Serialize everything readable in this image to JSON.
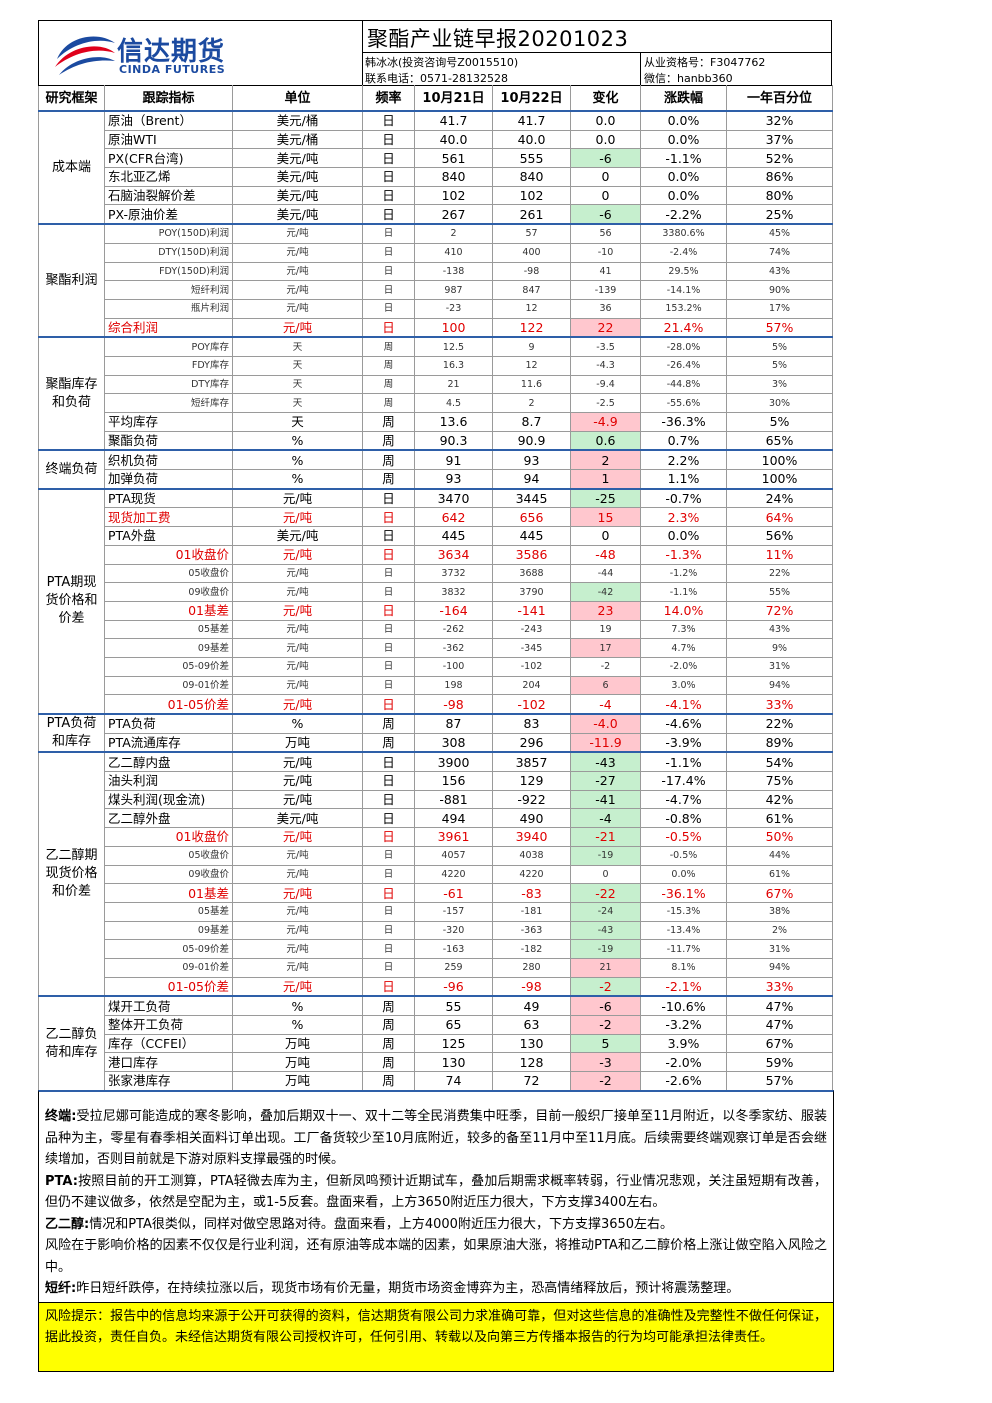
{
  "header": {
    "logo_cn": "信达期货",
    "logo_en": "CINDA FUTURES",
    "title": "聚酯产业链早报20201023",
    "author": "韩冰冰(投资咨询号Z0015510)",
    "phone": "联系电话：0571-28132528",
    "license": "从业资格号：F3047762",
    "wechat": "微信：hanbb360"
  },
  "table": {
    "columns": [
      "研究框架",
      "跟踪指标",
      "单位",
      "频率",
      "10月21日",
      "10月22日",
      "变化",
      "涨跌幅",
      "一年百分位"
    ],
    "groups": [
      {
        "label": [
          "成本端"
        ],
        "rows": [
          [
            "原油（Brent）",
            "美元/桶",
            "日",
            "41.7",
            "41.7",
            "0.0",
            "0.0%",
            "32%"
          ],
          [
            "原油WTI",
            "美元/桶",
            "日",
            "40.0",
            "40.0",
            "0.0",
            "0.0%",
            "37%"
          ],
          [
            "PX(CFR台湾)",
            "美元/吨",
            "日",
            "561",
            "555",
            "-6",
            "-1.1%",
            "52%"
          ],
          [
            "东北亚乙烯",
            "美元/吨",
            "日",
            "840",
            "840",
            "0",
            "0.0%",
            "86%"
          ],
          [
            "石脑油裂解价差",
            "美元/吨",
            "日",
            "102",
            "102",
            "0",
            "0.0%",
            "80%"
          ],
          [
            "PX-原油价差",
            "美元/吨",
            "日",
            "267",
            "261",
            "-6",
            "-2.2%",
            "25%"
          ]
        ]
      },
      {
        "label": [
          "聚酯利润"
        ],
        "rows": [
          [
            "POY(150D)利润",
            "元/吨",
            "日",
            "2",
            "57",
            "56",
            "3380.6%",
            "45%"
          ],
          [
            "DTY(150D)利润",
            "元/吨",
            "日",
            "410",
            "400",
            "-10",
            "-2.4%",
            "74%"
          ],
          [
            "FDY(150D)利润",
            "元/吨",
            "日",
            "-138",
            "-98",
            "41",
            "29.5%",
            "43%"
          ],
          [
            "短纤利润",
            "元/吨",
            "日",
            "987",
            "847",
            "-139",
            "-14.1%",
            "90%"
          ],
          [
            "瓶片利润",
            "元/吨",
            "日",
            "-23",
            "12",
            "36",
            "153.2%",
            "17%"
          ],
          [
            "综合利润",
            "元/吨",
            "日",
            "100",
            "122",
            "22",
            "21.4%",
            "57%"
          ]
        ]
      },
      {
        "label": [
          "聚酯库存",
          "和负荷"
        ],
        "rows": [
          [
            "POY库存",
            "天",
            "周",
            "12.5",
            "9",
            "-3.5",
            "-28.0%",
            "5%"
          ],
          [
            "FDY库存",
            "天",
            "周",
            "16.3",
            "12",
            "-4.3",
            "-26.4%",
            "5%"
          ],
          [
            "DTY库存",
            "天",
            "周",
            "21",
            "11.6",
            "-9.4",
            "-44.8%",
            "3%"
          ],
          [
            "短纤库存",
            "天",
            "周",
            "4.5",
            "2",
            "-2.5",
            "-55.6%",
            "30%"
          ],
          [
            "平均库存",
            "天",
            "周",
            "13.6",
            "8.7",
            "-4.9",
            "-36.3%",
            "5%"
          ],
          [
            "聚酯负荷",
            "%",
            "周",
            "90.3",
            "90.9",
            "0.6",
            "0.7%",
            "65%"
          ]
        ]
      },
      {
        "label": [
          "终端负荷"
        ],
        "rows": [
          [
            "织机负荷",
            "%",
            "周",
            "91",
            "93",
            "2",
            "2.2%",
            "100%"
          ],
          [
            "加弹负荷",
            "%",
            "周",
            "93",
            "94",
            "1",
            "1.1%",
            "100%"
          ]
        ]
      },
      {
        "label": [
          "PTA期现",
          "货价格和",
          "价差"
        ],
        "rows": [
          [
            "PTA现货",
            "元/吨",
            "日",
            "3470",
            "3445",
            "-25",
            "-0.7%",
            "24%"
          ],
          [
            "现货加工费",
            "元/吨",
            "日",
            "642",
            "656",
            "15",
            "2.3%",
            "64%"
          ],
          [
            "PTA外盘",
            "美元/吨",
            "日",
            "445",
            "445",
            "0",
            "0.0%",
            "56%"
          ],
          [
            "01收盘价",
            "元/吨",
            "日",
            "3634",
            "3586",
            "-48",
            "-1.3%",
            "11%"
          ],
          [
            "05收盘价",
            "元/吨",
            "日",
            "3732",
            "3688",
            "-44",
            "-1.2%",
            "22%"
          ],
          [
            "09收盘价",
            "元/吨",
            "日",
            "3832",
            "3790",
            "-42",
            "-1.1%",
            "55%"
          ],
          [
            "01基差",
            "元/吨",
            "日",
            "-164",
            "-141",
            "23",
            "14.0%",
            "72%"
          ],
          [
            "05基差",
            "元/吨",
            "日",
            "-262",
            "-243",
            "19",
            "7.3%",
            "43%"
          ],
          [
            "09基差",
            "元/吨",
            "日",
            "-362",
            "-345",
            "17",
            "4.7%",
            "9%"
          ],
          [
            "05-09价差",
            "元/吨",
            "日",
            "-100",
            "-102",
            "-2",
            "-2.0%",
            "31%"
          ],
          [
            "09-01价差",
            "元/吨",
            "日",
            "198",
            "204",
            "6",
            "3.0%",
            "94%"
          ],
          [
            "01-05价差",
            "元/吨",
            "日",
            "-98",
            "-102",
            "-4",
            "-4.1%",
            "33%"
          ]
        ]
      },
      {
        "label": [
          "PTA负荷",
          "和库存"
        ],
        "rows": [
          [
            "PTA负荷",
            "%",
            "周",
            "87",
            "83",
            "-4.0",
            "-4.6%",
            "22%"
          ],
          [
            "PTA流通库存",
            "万吨",
            "周",
            "308",
            "296",
            "-11.9",
            "-3.9%",
            "89%"
          ]
        ]
      },
      {
        "label": [
          "乙二醇期",
          "现货价格",
          "和价差"
        ],
        "rows": [
          [
            "乙二醇内盘",
            "元/吨",
            "日",
            "3900",
            "3857",
            "-43",
            "-1.1%",
            "54%"
          ],
          [
            "油头利润",
            "元/吨",
            "日",
            "156",
            "129",
            "-27",
            "-17.4%",
            "75%"
          ],
          [
            "煤头利润(现金流)",
            "元/吨",
            "日",
            "-881",
            "-922",
            "-41",
            "-4.7%",
            "42%"
          ],
          [
            "乙二醇外盘",
            "美元/吨",
            "日",
            "494",
            "490",
            "-4",
            "-0.8%",
            "61%"
          ],
          [
            "01收盘价",
            "元/吨",
            "日",
            "3961",
            "3940",
            "-21",
            "-0.5%",
            "50%"
          ],
          [
            "05收盘价",
            "元/吨",
            "日",
            "4057",
            "4038",
            "-19",
            "-0.5%",
            "44%"
          ],
          [
            "09收盘价",
            "元/吨",
            "日",
            "4220",
            "4220",
            "0",
            "0.0%",
            "61%"
          ],
          [
            "01基差",
            "元/吨",
            "日",
            "-61",
            "-83",
            "-22",
            "-36.1%",
            "67%"
          ],
          [
            "05基差",
            "元/吨",
            "日",
            "-157",
            "-181",
            "-24",
            "-15.3%",
            "38%"
          ],
          [
            "09基差",
            "元/吨",
            "日",
            "-320",
            "-363",
            "-43",
            "-13.4%",
            "2%"
          ],
          [
            "05-09价差",
            "元/吨",
            "日",
            "-163",
            "-182",
            "-19",
            "-11.7%",
            "31%"
          ],
          [
            "09-01价差",
            "元/吨",
            "日",
            "259",
            "280",
            "21",
            "8.1%",
            "94%"
          ],
          [
            "01-05价差",
            "元/吨",
            "日",
            "-96",
            "-98",
            "-2",
            "-2.1%",
            "33%"
          ]
        ]
      },
      {
        "label": [
          "乙二醇负",
          "荷和库存"
        ],
        "rows": [
          [
            "煤开工负荷",
            "%",
            "周",
            "55",
            "49",
            "-6",
            "-10.6%",
            "47%"
          ],
          [
            "整体开工负荷",
            "%",
            "周",
            "65",
            "63",
            "-2",
            "-3.2%",
            "47%"
          ],
          [
            "库存（CCFEI）",
            "万吨",
            "周",
            "125",
            "130",
            "5",
            "3.9%",
            "67%"
          ],
          [
            "港口库存",
            "万吨",
            "周",
            "130",
            "128",
            "-3",
            "-2.0%",
            "59%"
          ],
          [
            "张家港库存",
            "万吨",
            "周",
            "74",
            "72",
            "-2",
            "-2.6%",
            "57%"
          ]
        ]
      }
    ]
  },
  "notes": [
    {
      "label": "终端:",
      "text": "受拉尼娜可能造成的寒冬影响，叠加后期双十一、双十二等全民消费集中旺季，目前一般织厂接单至11月附近，以冬季家纺、服装品种为主，零星有春季相关面料订单出现。工厂备货较少至10月底附近，较多的备至11月中至11月底。后续需要终端观察订单是否会继续增加，否则目前就是下游对原料支撑最强的时候。"
    },
    {
      "label": "PTA:",
      "text": "按照目前的开工测算，PTA轻微去库为主，但新凤鸣预计近期试车，叠加后期需求概率转弱，行业情况悲观，关注虽短期有改善，但仍不建议做多，依然是空配为主，或1-5反套。盘面来看，上方3650附近压力很大，下方支撑3400左右。"
    },
    {
      "label": "乙二醇:",
      "text": "情况和PTA很类似，同样对做空思路对待。盘面来看，上方4000附近压力很大，下方支撑3650左右。"
    },
    {
      "text": "风险在于影响价格的因素不仅仅是行业利润，还有原油等成本端的因素，如果原油大涨，将推动PTA和乙二醇价格上涨让做空陷入风险之中。"
    },
    {
      "label": "短纤:",
      "text": "昨日短纤跌停，在持续拉涨以后，现货市场有价无量，期货市场资金博弈为主，恐高情绪释放后，预计将震荡整理。"
    }
  ],
  "disclaimer": "风险提示：报告中的信息均来源于公开可获得的资料，信达期货有限公司力求准确可靠，但对这些信息的准确性及完整性不做任何保证，据此投资，责任自负。未经信达期货有限公司授权许可，任何引用、转载以及向第三方传播本报告的行为均可能承担法律责任。"
}
